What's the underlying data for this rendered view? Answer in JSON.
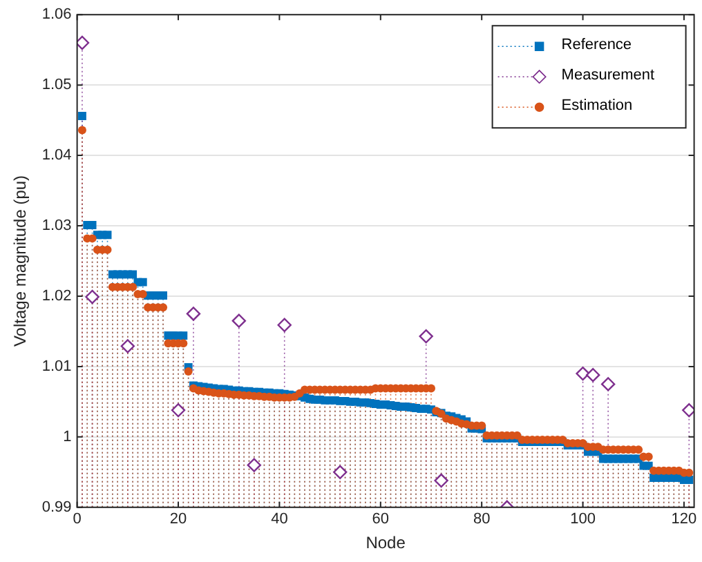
{
  "chart_data": {
    "type": "lollipop",
    "xlabel": "Node",
    "ylabel": "Voltage magnitude (pu)",
    "x": [
      1,
      2,
      3,
      4,
      5,
      6,
      7,
      8,
      9,
      10,
      11,
      12,
      13,
      14,
      15,
      16,
      17,
      18,
      19,
      20,
      21,
      22,
      23,
      24,
      25,
      26,
      27,
      28,
      29,
      30,
      31,
      32,
      33,
      34,
      35,
      36,
      37,
      38,
      39,
      40,
      41,
      42,
      43,
      44,
      45,
      46,
      47,
      48,
      49,
      50,
      51,
      52,
      53,
      54,
      55,
      56,
      57,
      58,
      59,
      60,
      61,
      62,
      63,
      64,
      65,
      66,
      67,
      68,
      69,
      70,
      71,
      72,
      73,
      74,
      75,
      76,
      77,
      78,
      79,
      80,
      81,
      82,
      83,
      84,
      85,
      86,
      87,
      88,
      89,
      90,
      91,
      92,
      93,
      94,
      95,
      96,
      97,
      98,
      99,
      100,
      101,
      102,
      103,
      104,
      105,
      106,
      107,
      108,
      109,
      110,
      111,
      112,
      113,
      114,
      115,
      116,
      117,
      118,
      119,
      120,
      121
    ],
    "series": [
      {
        "name": "Reference",
        "color": "#0072bd",
        "marker": "square",
        "values": [
          1.0456,
          1.0301,
          1.0301,
          1.0287,
          1.0287,
          1.0287,
          1.0231,
          1.0231,
          1.0231,
          1.0231,
          1.0231,
          1.022,
          1.022,
          1.0201,
          1.0201,
          1.0201,
          1.0201,
          1.0144,
          1.0144,
          1.0144,
          1.0144,
          1.0099,
          1.0073,
          1.0072,
          1.0071,
          1.007,
          1.0069,
          1.0068,
          1.0068,
          1.0067,
          1.0066,
          1.0066,
          1.0065,
          1.0065,
          1.0064,
          1.0064,
          1.0063,
          1.0063,
          1.0062,
          1.0062,
          1.0061,
          1.006,
          1.0059,
          1.0058,
          1.0056,
          1.0054,
          1.0053,
          1.0053,
          1.0052,
          1.0052,
          1.0052,
          1.0051,
          1.0051,
          1.005,
          1.005,
          1.0049,
          1.0049,
          1.0048,
          1.0047,
          1.0046,
          1.0046,
          1.0045,
          1.0044,
          1.0043,
          1.0043,
          1.0042,
          1.0041,
          1.004,
          1.004,
          1.0039,
          1.0035,
          1.0034,
          1.003,
          1.0029,
          1.0027,
          1.0025,
          1.0022,
          1.0012,
          1.0012,
          1.0011,
          0.9998,
          0.9998,
          0.9998,
          0.9998,
          0.9998,
          0.9998,
          0.9998,
          0.9993,
          0.9993,
          0.9993,
          0.9993,
          0.9993,
          0.9993,
          0.9993,
          0.9993,
          0.9993,
          0.9988,
          0.9988,
          0.9988,
          0.9988,
          0.9979,
          0.9979,
          0.9979,
          0.9969,
          0.9969,
          0.9969,
          0.9969,
          0.9969,
          0.9969,
          0.9969,
          0.9969,
          0.9959,
          0.9959,
          0.9942,
          0.9942,
          0.9942,
          0.9942,
          0.9942,
          0.9942,
          0.9939,
          0.9939
        ]
      },
      {
        "name": "Measurement",
        "color": "#7e2f8e",
        "marker": "diamond",
        "x": [
          1,
          3,
          10,
          20,
          23,
          32,
          35,
          41,
          52,
          69,
          72,
          85,
          100,
          102,
          105,
          121
        ],
        "values": [
          1.056,
          1.0199,
          1.0129,
          1.0038,
          1.0175,
          1.0165,
          0.996,
          1.0159,
          0.995,
          1.0143,
          0.9938,
          0.99,
          1.009,
          1.0088,
          1.0075,
          1.0038
        ]
      },
      {
        "name": "Estimation",
        "color": "#d95319",
        "marker": "circle",
        "values": [
          1.0436,
          1.0282,
          1.0282,
          1.0266,
          1.0266,
          1.0266,
          1.0213,
          1.0213,
          1.0213,
          1.0213,
          1.0213,
          1.0203,
          1.0203,
          1.0184,
          1.0184,
          1.0184,
          1.0184,
          1.0133,
          1.0133,
          1.0133,
          1.0133,
          1.0093,
          1.0069,
          1.0066,
          1.0065,
          1.0064,
          1.0063,
          1.0062,
          1.0062,
          1.0061,
          1.006,
          1.006,
          1.0059,
          1.0059,
          1.0058,
          1.0058,
          1.0057,
          1.0057,
          1.0056,
          1.0056,
          1.0056,
          1.0056,
          1.0057,
          1.0062,
          1.0067,
          1.0067,
          1.0067,
          1.0067,
          1.0067,
          1.0067,
          1.0067,
          1.0067,
          1.0067,
          1.0067,
          1.0067,
          1.0067,
          1.0067,
          1.0067,
          1.0069,
          1.0069,
          1.0069,
          1.0069,
          1.0069,
          1.0069,
          1.0069,
          1.0069,
          1.0069,
          1.0069,
          1.0069,
          1.0069,
          1.0037,
          1.0033,
          1.0026,
          1.0024,
          1.0022,
          1.0019,
          1.0018,
          1.0016,
          1.0016,
          1.0016,
          1.0002,
          1.0002,
          1.0002,
          1.0002,
          1.0002,
          1.0002,
          1.0002,
          0.9996,
          0.9996,
          0.9996,
          0.9996,
          0.9996,
          0.9996,
          0.9996,
          0.9996,
          0.9996,
          0.9991,
          0.9991,
          0.9991,
          0.9991,
          0.9986,
          0.9986,
          0.9986,
          0.9982,
          0.9982,
          0.9982,
          0.9982,
          0.9982,
          0.9982,
          0.9982,
          0.9982,
          0.9972,
          0.9972,
          0.9952,
          0.9952,
          0.9952,
          0.9952,
          0.9952,
          0.9952,
          0.9949,
          0.9949
        ]
      }
    ],
    "line_style": "dotted",
    "xlim": [
      0,
      122
    ],
    "xticks": [
      0,
      20,
      40,
      60,
      80,
      100,
      120
    ],
    "ylim": [
      0.99,
      1.06
    ],
    "yticks": [
      0.99,
      1,
      1.01,
      1.02,
      1.03,
      1.04,
      1.05,
      1.06
    ],
    "grid": "y",
    "legend": "top right"
  }
}
